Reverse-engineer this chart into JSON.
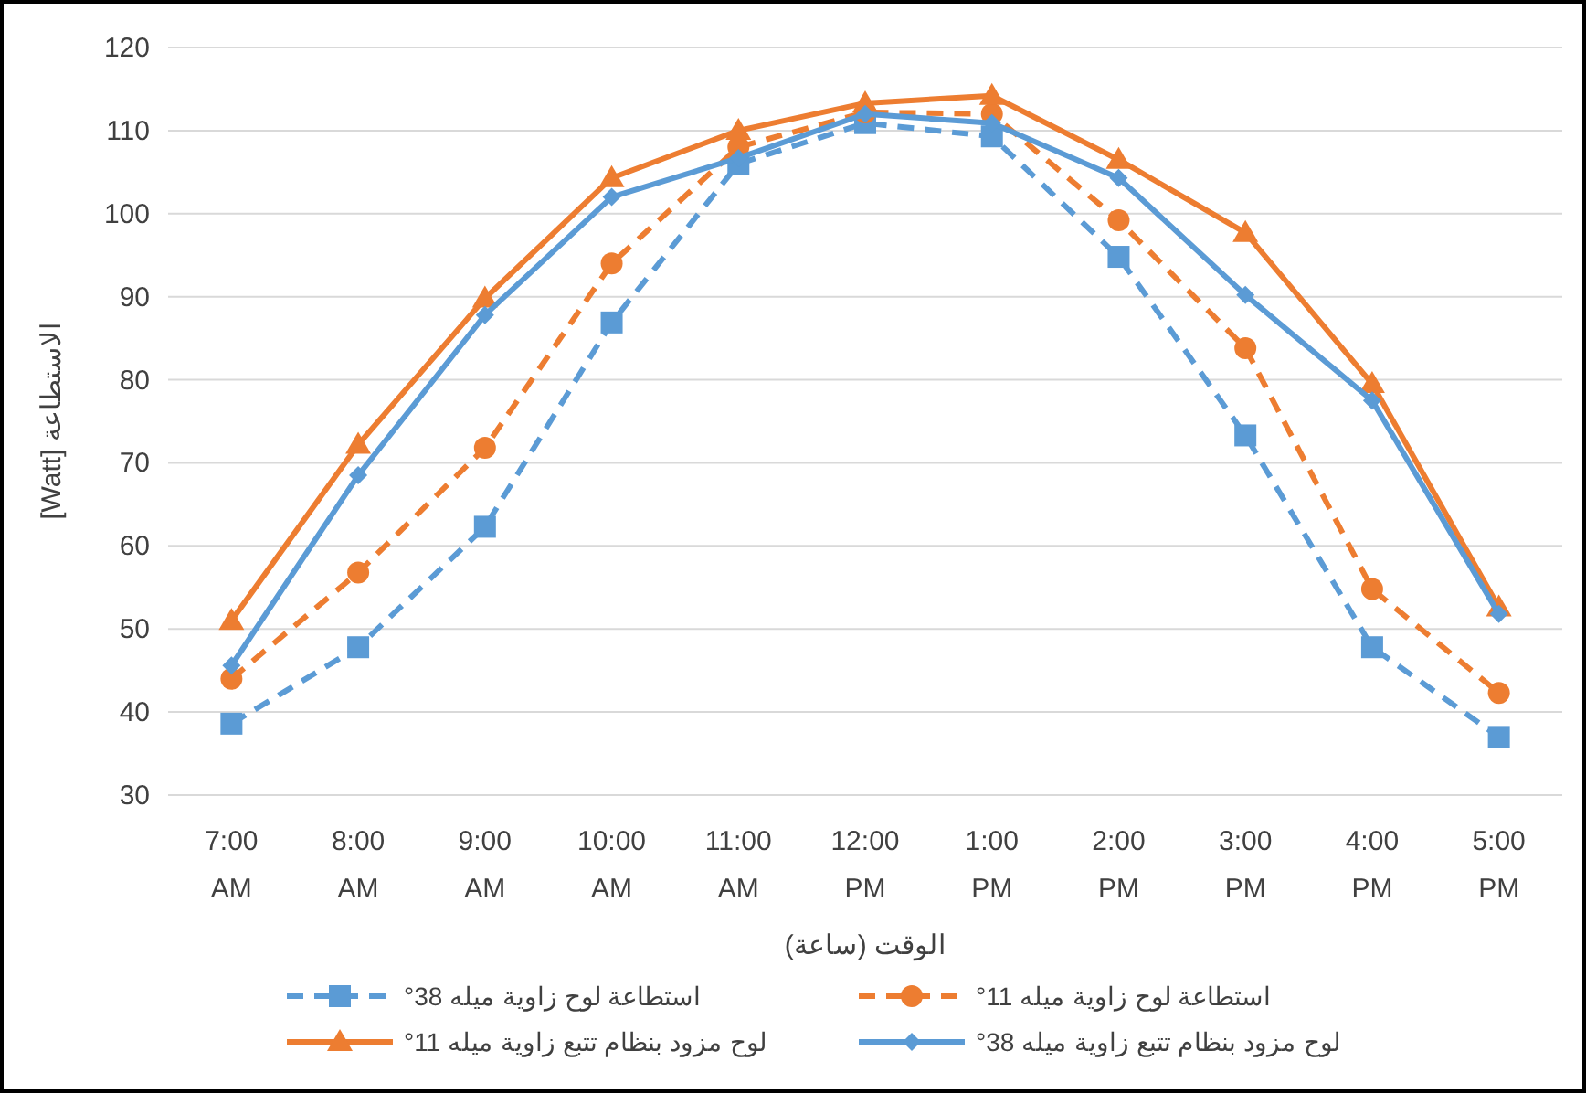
{
  "chart_data": {
    "type": "line",
    "categories": [
      "7:00 AM",
      "8:00 AM",
      "9:00 AM",
      "10:00 AM",
      "11:00 AM",
      "12:00 PM",
      "1:00 PM",
      "2:00 PM",
      "3:00 PM",
      "4:00 PM",
      "5:00 PM"
    ],
    "series": [
      {
        "name": "استطاعة لوح زاوية ميله 38°",
        "color": "#5b9bd5",
        "marker": "square",
        "line_style": "dashed",
        "values": [
          38.6,
          47.8,
          62.3,
          86.9,
          106,
          110.9,
          109.3,
          94.8,
          73.3,
          47.8,
          37
        ]
      },
      {
        "name": "استطاعة لوح زاوية ميله 11°",
        "color": "#ed7d31",
        "marker": "circle",
        "line_style": "dashed",
        "values": [
          44,
          56.8,
          71.8,
          94,
          108,
          112.2,
          112,
          99.2,
          83.8,
          54.8,
          42.3
        ]
      },
      {
        "name": "لوح مزود بنظام تتبع زاوية ميله 11°",
        "color": "#ed7d31",
        "marker": "triangle",
        "line_style": "solid",
        "values": [
          51,
          72.2,
          89.8,
          104.3,
          110,
          113.3,
          114.2,
          106.5,
          97.7,
          79.5,
          52.6
        ]
      },
      {
        "name": "لوح مزود بنظام تتبع زاوية ميله 38°",
        "color": "#5b9bd5",
        "marker": "diamond",
        "line_style": "solid",
        "values": [
          45.6,
          68.5,
          87.8,
          102,
          106.7,
          112,
          110.9,
          104.3,
          90.2,
          77.5,
          51.8
        ]
      }
    ],
    "xlabel": "الوقت (ساعة)",
    "ylabel": "[Watt] الاستطاعة",
    "ylim": [
      30,
      120
    ],
    "yticks": [
      30,
      40,
      50,
      60,
      70,
      80,
      90,
      100,
      110,
      120
    ],
    "grid": "y",
    "legend": "bottom"
  }
}
